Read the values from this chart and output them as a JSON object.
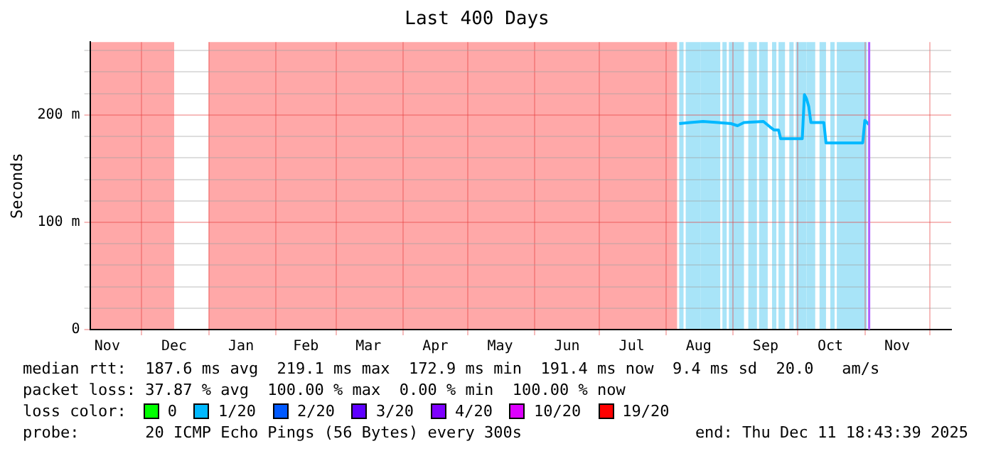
{
  "chart_data": {
    "type": "line",
    "title": "Last 400 Days",
    "ylabel": "Seconds",
    "legend_title": "loss color:",
    "legend": "bottom",
    "grid": true,
    "marker": "none",
    "line_style": "solid",
    "xlim": [
      "2024-11-07",
      "2025-12-11"
    ],
    "xticks": [
      {
        "value": "2024-11-15",
        "label": "Nov"
      },
      {
        "value": "2024-12-01",
        "label": null
      },
      {
        "value": "2024-12-16",
        "label": "Dec"
      },
      {
        "value": "2025-01-01",
        "label": null
      },
      {
        "value": "2025-01-16",
        "label": "Jan"
      },
      {
        "value": "2025-02-01",
        "label": null
      },
      {
        "value": "2025-02-15",
        "label": "Feb"
      },
      {
        "value": "2025-03-01",
        "label": null
      },
      {
        "value": "2025-03-16",
        "label": "Mar"
      },
      {
        "value": "2025-04-01",
        "label": null
      },
      {
        "value": "2025-04-16",
        "label": "Apr"
      },
      {
        "value": "2025-05-01",
        "label": null
      },
      {
        "value": "2025-05-16",
        "label": "May"
      },
      {
        "value": "2025-06-01",
        "label": null
      },
      {
        "value": "2025-06-16",
        "label": "Jun"
      },
      {
        "value": "2025-07-01",
        "label": null
      },
      {
        "value": "2025-07-16",
        "label": "Jul"
      },
      {
        "value": "2025-08-01",
        "label": null
      },
      {
        "value": "2025-08-16",
        "label": "Aug"
      },
      {
        "value": "2025-09-01",
        "label": null
      },
      {
        "value": "2025-09-16",
        "label": "Sep"
      },
      {
        "value": "2025-10-01",
        "label": null
      },
      {
        "value": "2025-10-16",
        "label": "Oct"
      },
      {
        "value": "2025-11-01",
        "label": null
      },
      {
        "value": "2025-11-16",
        "label": "Nov"
      },
      {
        "value": "2025-12-01",
        "label": null
      }
    ],
    "ylim": [
      0,
      268
    ],
    "yticks": [
      {
        "value": 0,
        "label": "0"
      },
      {
        "value": 20,
        "label": null
      },
      {
        "value": 40,
        "label": null
      },
      {
        "value": 60,
        "label": null
      },
      {
        "value": 80,
        "label": null
      },
      {
        "value": 100,
        "label": "100 m"
      },
      {
        "value": 120,
        "label": null
      },
      {
        "value": 140,
        "label": null
      },
      {
        "value": 160,
        "label": null
      },
      {
        "value": 180,
        "label": null
      },
      {
        "value": 200,
        "label": "200 m"
      },
      {
        "value": 220,
        "label": null
      },
      {
        "value": 240,
        "label": null
      },
      {
        "value": 260,
        "label": null
      }
    ],
    "bands": [
      {
        "axis": "x",
        "from": "2024-11-07",
        "to": "2024-12-16",
        "color": "#ffa8a8"
      },
      {
        "axis": "x",
        "from": "2025-01-01",
        "to": "2025-08-06",
        "color": "#ffa8a8"
      },
      {
        "axis": "x",
        "from": "2025-08-07",
        "to": "2025-08-09",
        "color": "#a8e4f8"
      },
      {
        "axis": "x",
        "from": "2025-08-10",
        "to": "2025-08-17",
        "color": "#a8e4f8"
      },
      {
        "axis": "x",
        "from": "2025-08-17",
        "to": "2025-08-26",
        "color": "#a8e4f8"
      },
      {
        "axis": "x",
        "from": "2025-08-27",
        "to": "2025-08-29",
        "color": "#a8e4f8"
      },
      {
        "axis": "x",
        "from": "2025-08-30",
        "to": "2025-09-06",
        "color": "#a8e4f8"
      },
      {
        "axis": "x",
        "from": "2025-09-08",
        "to": "2025-09-12",
        "color": "#a8e4f8"
      },
      {
        "axis": "x",
        "from": "2025-09-13",
        "to": "2025-09-17",
        "color": "#a8e4f8"
      },
      {
        "axis": "x",
        "from": "2025-09-19",
        "to": "2025-09-21",
        "color": "#a8e4f8"
      },
      {
        "axis": "x",
        "from": "2025-09-22",
        "to": "2025-09-25",
        "color": "#a8e4f8"
      },
      {
        "axis": "x",
        "from": "2025-09-27",
        "to": "2025-09-29",
        "color": "#a8e4f8"
      },
      {
        "axis": "x",
        "from": "2025-09-30",
        "to": "2025-10-05",
        "color": "#a8e4f8"
      },
      {
        "axis": "x",
        "from": "2025-10-05",
        "to": "2025-10-09",
        "color": "#a8e4f8"
      },
      {
        "axis": "x",
        "from": "2025-10-11",
        "to": "2025-10-14",
        "color": "#a8e4f8"
      },
      {
        "axis": "x",
        "from": "2025-10-16",
        "to": "2025-10-18",
        "color": "#a8e4f8"
      },
      {
        "axis": "x",
        "from": "2025-10-19",
        "to": "2025-11-02",
        "color": "#a8e4f8"
      }
    ],
    "ref_lines": [
      {
        "axis": "x",
        "value": "2025-11-03",
        "color": "#b060ff"
      }
    ],
    "series": [
      {
        "name": "0",
        "color": "#00ff00"
      },
      {
        "name": "1/20",
        "color": "#00b8ff",
        "x": [
          "2025-08-07",
          "2025-08-12",
          "2025-08-18",
          "2025-08-25",
          "2025-08-31",
          "2025-09-03",
          "2025-09-06",
          "2025-09-15",
          "2025-09-18",
          "2025-09-20",
          "2025-09-22",
          "2025-09-23",
          "2025-10-03",
          "2025-10-04",
          "2025-10-05",
          "2025-10-06",
          "2025-10-07",
          "2025-10-13",
          "2025-10-14",
          "2025-10-20",
          "2025-10-27",
          "2025-10-31",
          "2025-11-01",
          "2025-11-03"
        ],
        "values": [
          192,
          193,
          194,
          193,
          192,
          190,
          193,
          194,
          189,
          186,
          186,
          178,
          178,
          219,
          215,
          208,
          193,
          193,
          174,
          174,
          174,
          174,
          195,
          191
        ]
      },
      {
        "name": "2/20",
        "color": "#0059ff"
      },
      {
        "name": "3/20",
        "color": "#5e00ff"
      },
      {
        "name": "4/20",
        "color": "#7e00ff"
      },
      {
        "name": "10/20",
        "color": "#dd00ff"
      },
      {
        "name": "19/20",
        "color": "#ff0000"
      }
    ],
    "annotations": [
      "median rtt:  187.6 ms avg  219.1 ms max  172.9 ms min  191.4 ms now  9.4 ms sd  20.0   am/s",
      "packet loss: 37.87 % avg  100.00 % max  0.00 % min  100.00 % now",
      "probe:       20 ICMP Echo Pings (56 Bytes) every 300s",
      "end: Thu Dec 11 18:43:39 2025"
    ]
  }
}
